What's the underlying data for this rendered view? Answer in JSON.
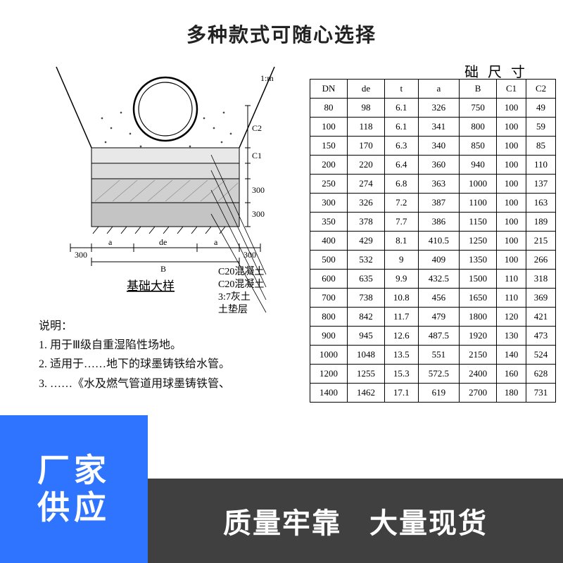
{
  "top_banner": "多种款式可随心选择",
  "diagram": {
    "title": "基础大样",
    "leader_labels": [
      "C20混凝土",
      "C20混凝土",
      "3:7灰土",
      "土垫层"
    ],
    "dims": {
      "left_edge": "300",
      "right_edge": "300",
      "a_left": "a",
      "a_right": "a",
      "de": "de",
      "B": "B",
      "layer1": "300",
      "layer2": "300",
      "c1": "C1",
      "c2": "C2",
      "slope": "1:m"
    },
    "colors": {
      "line": "#000000",
      "hatch": "#888888",
      "concrete": "#c9c9c9",
      "soil": "#b8b8b8",
      "bg": "#ffffff"
    }
  },
  "notes": {
    "heading": "说明：",
    "lines": [
      "1. 用于Ⅲ级自重湿陷性场地。",
      "2. 适用于……地下的球墨铸铁给水管。",
      "3. ……《水及燃气管道用球墨铸铁管、"
    ]
  },
  "table": {
    "title": "础 尺 寸",
    "columns": [
      "DN",
      "de",
      "t",
      "a",
      "B",
      "C1",
      "C2"
    ],
    "rows": [
      [
        "80",
        "98",
        "6.1",
        "326",
        "750",
        "100",
        "49"
      ],
      [
        "100",
        "118",
        "6.1",
        "341",
        "800",
        "100",
        "59"
      ],
      [
        "150",
        "170",
        "6.3",
        "340",
        "850",
        "100",
        "85"
      ],
      [
        "200",
        "220",
        "6.4",
        "360",
        "940",
        "100",
        "110"
      ],
      [
        "250",
        "274",
        "6.8",
        "363",
        "1000",
        "100",
        "137"
      ],
      [
        "300",
        "326",
        "7.2",
        "387",
        "1100",
        "100",
        "163"
      ],
      [
        "350",
        "378",
        "7.7",
        "386",
        "1150",
        "100",
        "189"
      ],
      [
        "400",
        "429",
        "8.1",
        "410.5",
        "1250",
        "100",
        "215"
      ],
      [
        "500",
        "532",
        "9",
        "409",
        "1350",
        "100",
        "266"
      ],
      [
        "600",
        "635",
        "9.9",
        "432.5",
        "1500",
        "110",
        "318"
      ],
      [
        "700",
        "738",
        "10.8",
        "456",
        "1650",
        "110",
        "369"
      ],
      [
        "800",
        "842",
        "11.7",
        "479",
        "1800",
        "120",
        "421"
      ],
      [
        "900",
        "945",
        "12.6",
        "487.5",
        "1920",
        "130",
        "473"
      ],
      [
        "1000",
        "1048",
        "13.5",
        "551",
        "2150",
        "140",
        "524"
      ],
      [
        "1200",
        "1255",
        "15.3",
        "572.5",
        "2400",
        "160",
        "628"
      ],
      [
        "1400",
        "1462",
        "17.1",
        "619",
        "2700",
        "180",
        "731"
      ]
    ],
    "border_color": "#000000",
    "font_size": 13
  },
  "overlay_bl": {
    "line1": "厂家",
    "line2": "供应",
    "bg": "#2f74ff"
  },
  "overlay_br": {
    "left": "质量牢靠",
    "right": "大量现货",
    "bg": "rgba(30,30,30,0.85)"
  }
}
